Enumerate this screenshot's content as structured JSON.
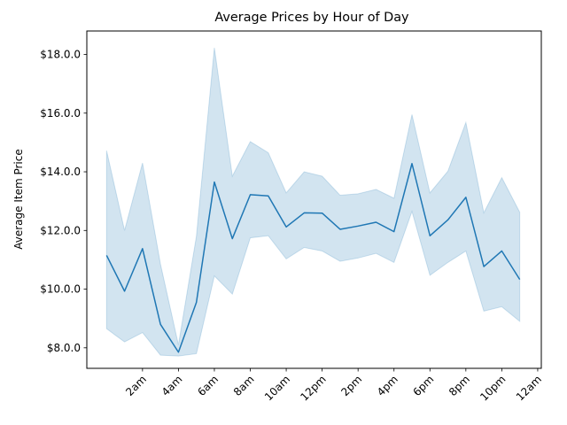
{
  "chart_data": {
    "type": "line",
    "title": "Average Prices by Hour of Day",
    "xlabel": "",
    "ylabel": "Average Item Price",
    "x": [
      0,
      1,
      2,
      3,
      4,
      5,
      6,
      7,
      8,
      9,
      10,
      11,
      12,
      13,
      14,
      15,
      16,
      17,
      18,
      19,
      20,
      21,
      22,
      23
    ],
    "xlim": [
      -1.1,
      24.2
    ],
    "ylim": [
      7.3,
      18.8
    ],
    "x_ticks": [
      2,
      4,
      6,
      8,
      10,
      12,
      14,
      16,
      18,
      20,
      22,
      24
    ],
    "x_tick_labels": [
      "2am",
      "4am",
      "6am",
      "8am",
      "10am",
      "12pm",
      "2pm",
      "4pm",
      "6pm",
      "8pm",
      "10pm",
      "12am"
    ],
    "y_ticks": [
      8,
      10,
      12,
      14,
      16,
      18
    ],
    "y_tick_labels": [
      "$8.0.0",
      "$10.0.0",
      "$12.0.0",
      "$14.0.0",
      "$16.0.0",
      "$18.0.0"
    ],
    "grid": false,
    "series": [
      {
        "values": [
          11.15,
          9.93,
          11.38,
          8.8,
          7.85,
          9.55,
          13.65,
          11.72,
          13.22,
          13.18,
          12.12,
          12.6,
          12.59,
          12.04,
          12.15,
          12.28,
          11.96,
          14.28,
          11.82,
          12.36,
          13.13,
          10.77,
          11.3,
          10.33
        ],
        "ci_upper": [
          14.72,
          12.0,
          14.3,
          10.85,
          8.1,
          11.8,
          18.23,
          13.85,
          15.03,
          14.65,
          13.28,
          14.0,
          13.85,
          13.2,
          13.25,
          13.4,
          13.1,
          15.95,
          13.28,
          14.02,
          15.68,
          12.6,
          13.8,
          12.62
        ],
        "ci_lower": [
          8.65,
          8.2,
          8.52,
          7.75,
          7.72,
          7.8,
          10.45,
          9.83,
          11.75,
          11.82,
          11.03,
          11.42,
          11.3,
          10.95,
          11.06,
          11.22,
          10.91,
          12.65,
          10.47,
          10.91,
          11.3,
          9.25,
          9.4,
          8.9
        ]
      }
    ],
    "colors": {
      "line": "#1f77b4",
      "band": "#1f77b4"
    }
  }
}
